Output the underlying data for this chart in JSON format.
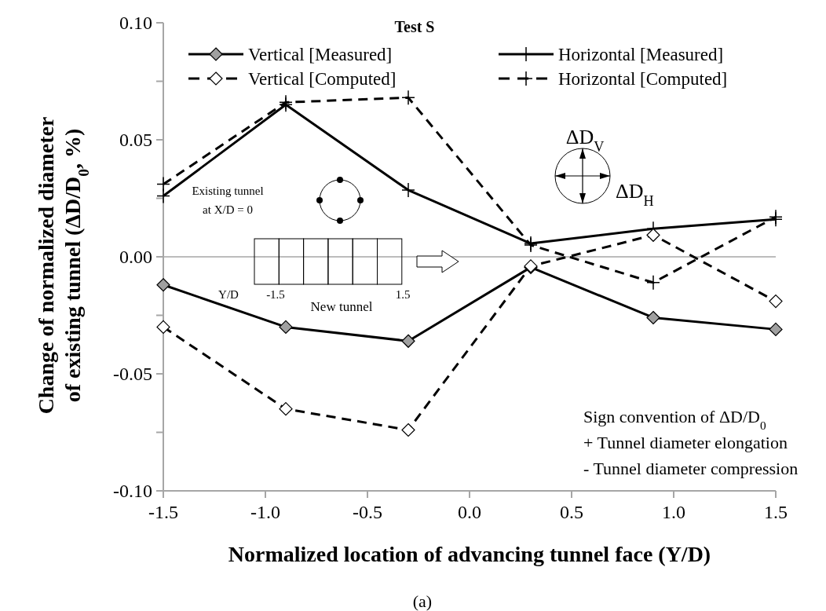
{
  "chart_data": {
    "type": "line",
    "title": "Test S",
    "xlabel": "Normalized location of advancing tunnel face (Y/D)",
    "ylabel": "Change of normalized  diameter\nof existing tunnel  (ΔD/D$_{0}$, %)",
    "x": [
      -1.5,
      -0.9,
      -0.3,
      0.3,
      0.9,
      1.5
    ],
    "series": [
      {
        "name": "Vertical [Measured]",
        "color": "#000000",
        "marker": "diamond",
        "line_style": "solid",
        "values": [
          -0.012,
          -0.03,
          -0.036,
          -0.0045,
          -0.026,
          -0.031
        ]
      },
      {
        "name": "Horizontal [Measured]",
        "color": "#000000",
        "marker": "cross",
        "line_style": "solid",
        "values": [
          0.026,
          0.065,
          0.0285,
          0.0057,
          0.012,
          0.016
        ]
      },
      {
        "name": "Vertical [Computed]",
        "color": "#000000",
        "marker": "diamond",
        "line_style": "dashed",
        "values": [
          -0.03,
          -0.065,
          -0.074,
          -0.004,
          0.0093,
          -0.019
        ]
      },
      {
        "name": "Horizontal [Computed]",
        "color": "#000000",
        "marker": "cross",
        "line_style": "dashed",
        "values": [
          0.031,
          0.066,
          0.068,
          0.005,
          -0.011,
          0.017
        ]
      }
    ],
    "xlim": [
      -1.5,
      1.5
    ],
    "xticks": [
      -1.5,
      {
        "value": -1,
        "label": "-1.0"
      },
      -0.5,
      {
        "value": 0,
        "label": "0.0"
      },
      0.5,
      {
        "value": 1,
        "label": "1.0"
      },
      1.5
    ],
    "ylim": [
      -0.1,
      0.1
    ],
    "yticks": [
      {
        "value": -0.1,
        "label": "-0.10"
      },
      {
        "value": -0.075,
        "label": null
      },
      {
        "value": -0.05,
        "label": "-0.05"
      },
      {
        "value": -0.025,
        "label": null
      },
      {
        "value": 0,
        "label": "0.00"
      },
      {
        "value": 0.025,
        "label": null
      },
      {
        "value": 0.05,
        "label": "0.05"
      },
      {
        "value": 0.075,
        "label": null
      },
      {
        "value": 0.1,
        "label": "0.10"
      }
    ],
    "ref_lines": [
      {
        "axis": "y",
        "value": 0,
        "label": null,
        "color": "#a6a6a6"
      }
    ],
    "grid": false,
    "legend": "top",
    "annotations": [
      "(a)",
      "Existing tunnel\nat X/D = 0",
      "Y/D",
      "-1.5",
      "1.5",
      "New tunnel",
      "ΔD$_{V}$",
      "ΔD$_{H}$",
      "Sign convention of ΔD/D$_{0}$\n+ Tunnel diameter elongation\n-  Tunnel diameter compression"
    ]
  }
}
